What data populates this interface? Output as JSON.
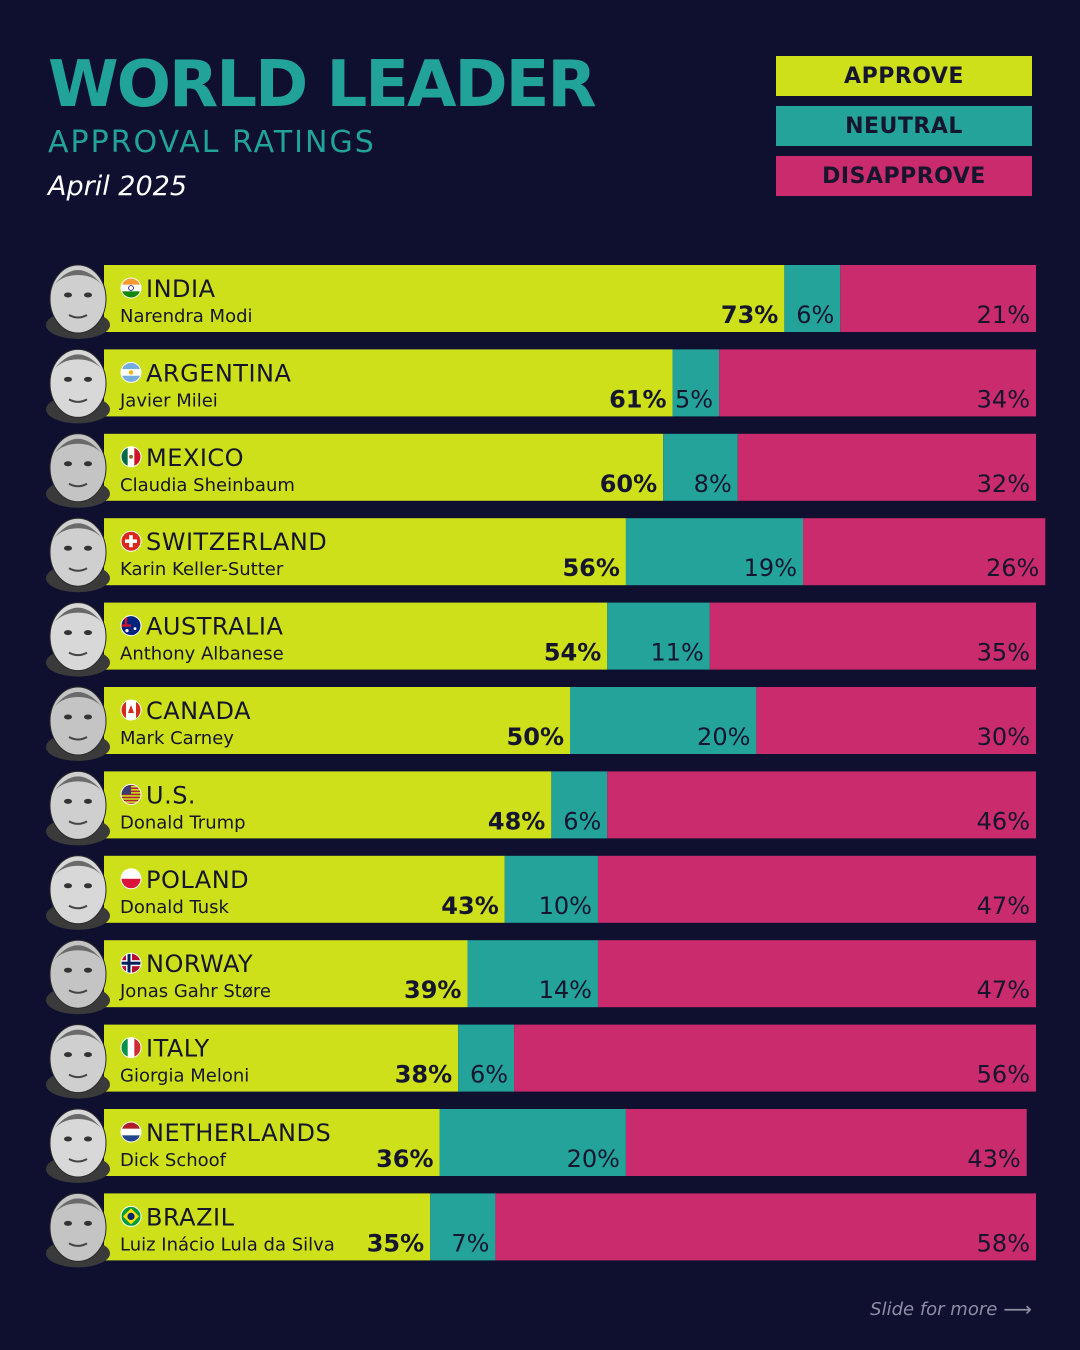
{
  "header": {
    "title": "WORLD LEADER",
    "subtitle": "APPROVAL RATINGS",
    "date": "April 2025"
  },
  "legend": {
    "approve": "APPROVE",
    "neutral": "NEUTRAL",
    "disapprove": "DISAPPROVE"
  },
  "footer": {
    "text": "Slide for more",
    "arrow": "⟶"
  },
  "colors": {
    "background": "#0f1030",
    "title": "#22a39a",
    "approve": "#cde019",
    "neutral": "#23a39a",
    "disapprove": "#c92b6c",
    "label_text": "#15152e"
  },
  "chart_data": {
    "type": "bar",
    "orientation": "horizontal",
    "stacked": true,
    "xlim": [
      0,
      100
    ],
    "categories": [
      {
        "country": "INDIA",
        "leader": "Narendra Modi",
        "flag": "india-flag-icon"
      },
      {
        "country": "ARGENTINA",
        "leader": "Javier Milei",
        "flag": "argentina-flag-icon"
      },
      {
        "country": "MEXICO",
        "leader": "Claudia Sheinbaum",
        "flag": "mexico-flag-icon"
      },
      {
        "country": "SWITZERLAND",
        "leader": "Karin Keller-Sutter",
        "flag": "switzerland-flag-icon"
      },
      {
        "country": "AUSTRALIA",
        "leader": "Anthony Albanese",
        "flag": "australia-flag-icon"
      },
      {
        "country": "CANADA",
        "leader": "Mark Carney",
        "flag": "canada-flag-icon"
      },
      {
        "country": "U.S.",
        "leader": "Donald Trump",
        "flag": "us-flag-icon"
      },
      {
        "country": "POLAND",
        "leader": "Donald Tusk",
        "flag": "poland-flag-icon"
      },
      {
        "country": "NORWAY",
        "leader": "Jonas Gahr Støre",
        "flag": "norway-flag-icon"
      },
      {
        "country": "ITALY",
        "leader": "Giorgia Meloni",
        "flag": "italy-flag-icon"
      },
      {
        "country": "NETHERLANDS",
        "leader": "Dick Schoof",
        "flag": "netherlands-flag-icon"
      },
      {
        "country": "BRAZIL",
        "leader": "Luiz Inácio Lula da Silva",
        "flag": "brazil-flag-icon"
      }
    ],
    "series": [
      {
        "name": "APPROVE",
        "values": [
          73,
          61,
          60,
          56,
          54,
          50,
          48,
          43,
          39,
          38,
          36,
          35
        ]
      },
      {
        "name": "NEUTRAL",
        "values": [
          6,
          5,
          8,
          19,
          11,
          20,
          6,
          10,
          14,
          6,
          20,
          7
        ]
      },
      {
        "name": "DISAPPROVE",
        "values": [
          21,
          34,
          32,
          26,
          35,
          30,
          46,
          47,
          47,
          56,
          43,
          58
        ]
      }
    ],
    "value_suffix": "%"
  }
}
